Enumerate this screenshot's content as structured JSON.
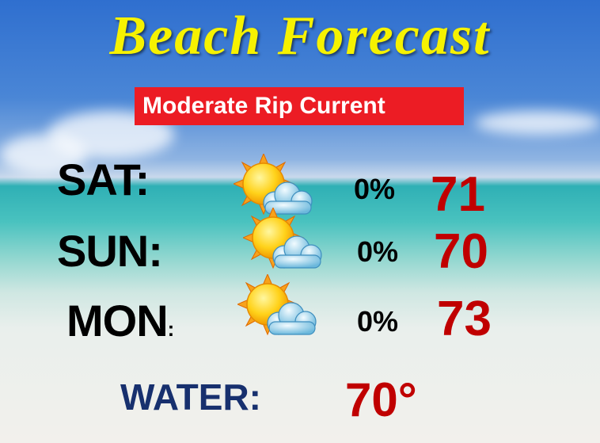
{
  "title": "Beach Forecast",
  "banner": "Moderate Rip Current",
  "days": [
    {
      "day": "SAT",
      "colon": ":",
      "icon": "partly-sunny-icon",
      "rain": "0%",
      "temp": "71"
    },
    {
      "day": "SUN",
      "colon": ":",
      "icon": "partly-sunny-icon",
      "rain": "0%",
      "temp": "70"
    },
    {
      "day": "MON",
      "colon": ":",
      "icon": "partly-sunny-icon",
      "rain": "0%",
      "temp": "73"
    }
  ],
  "water": {
    "label": "WATER:",
    "temp": "70°"
  },
  "colors": {
    "title": "#f6f200",
    "banner": "#ec1c24",
    "temp": "#c00000",
    "water_label": "#17306e"
  }
}
